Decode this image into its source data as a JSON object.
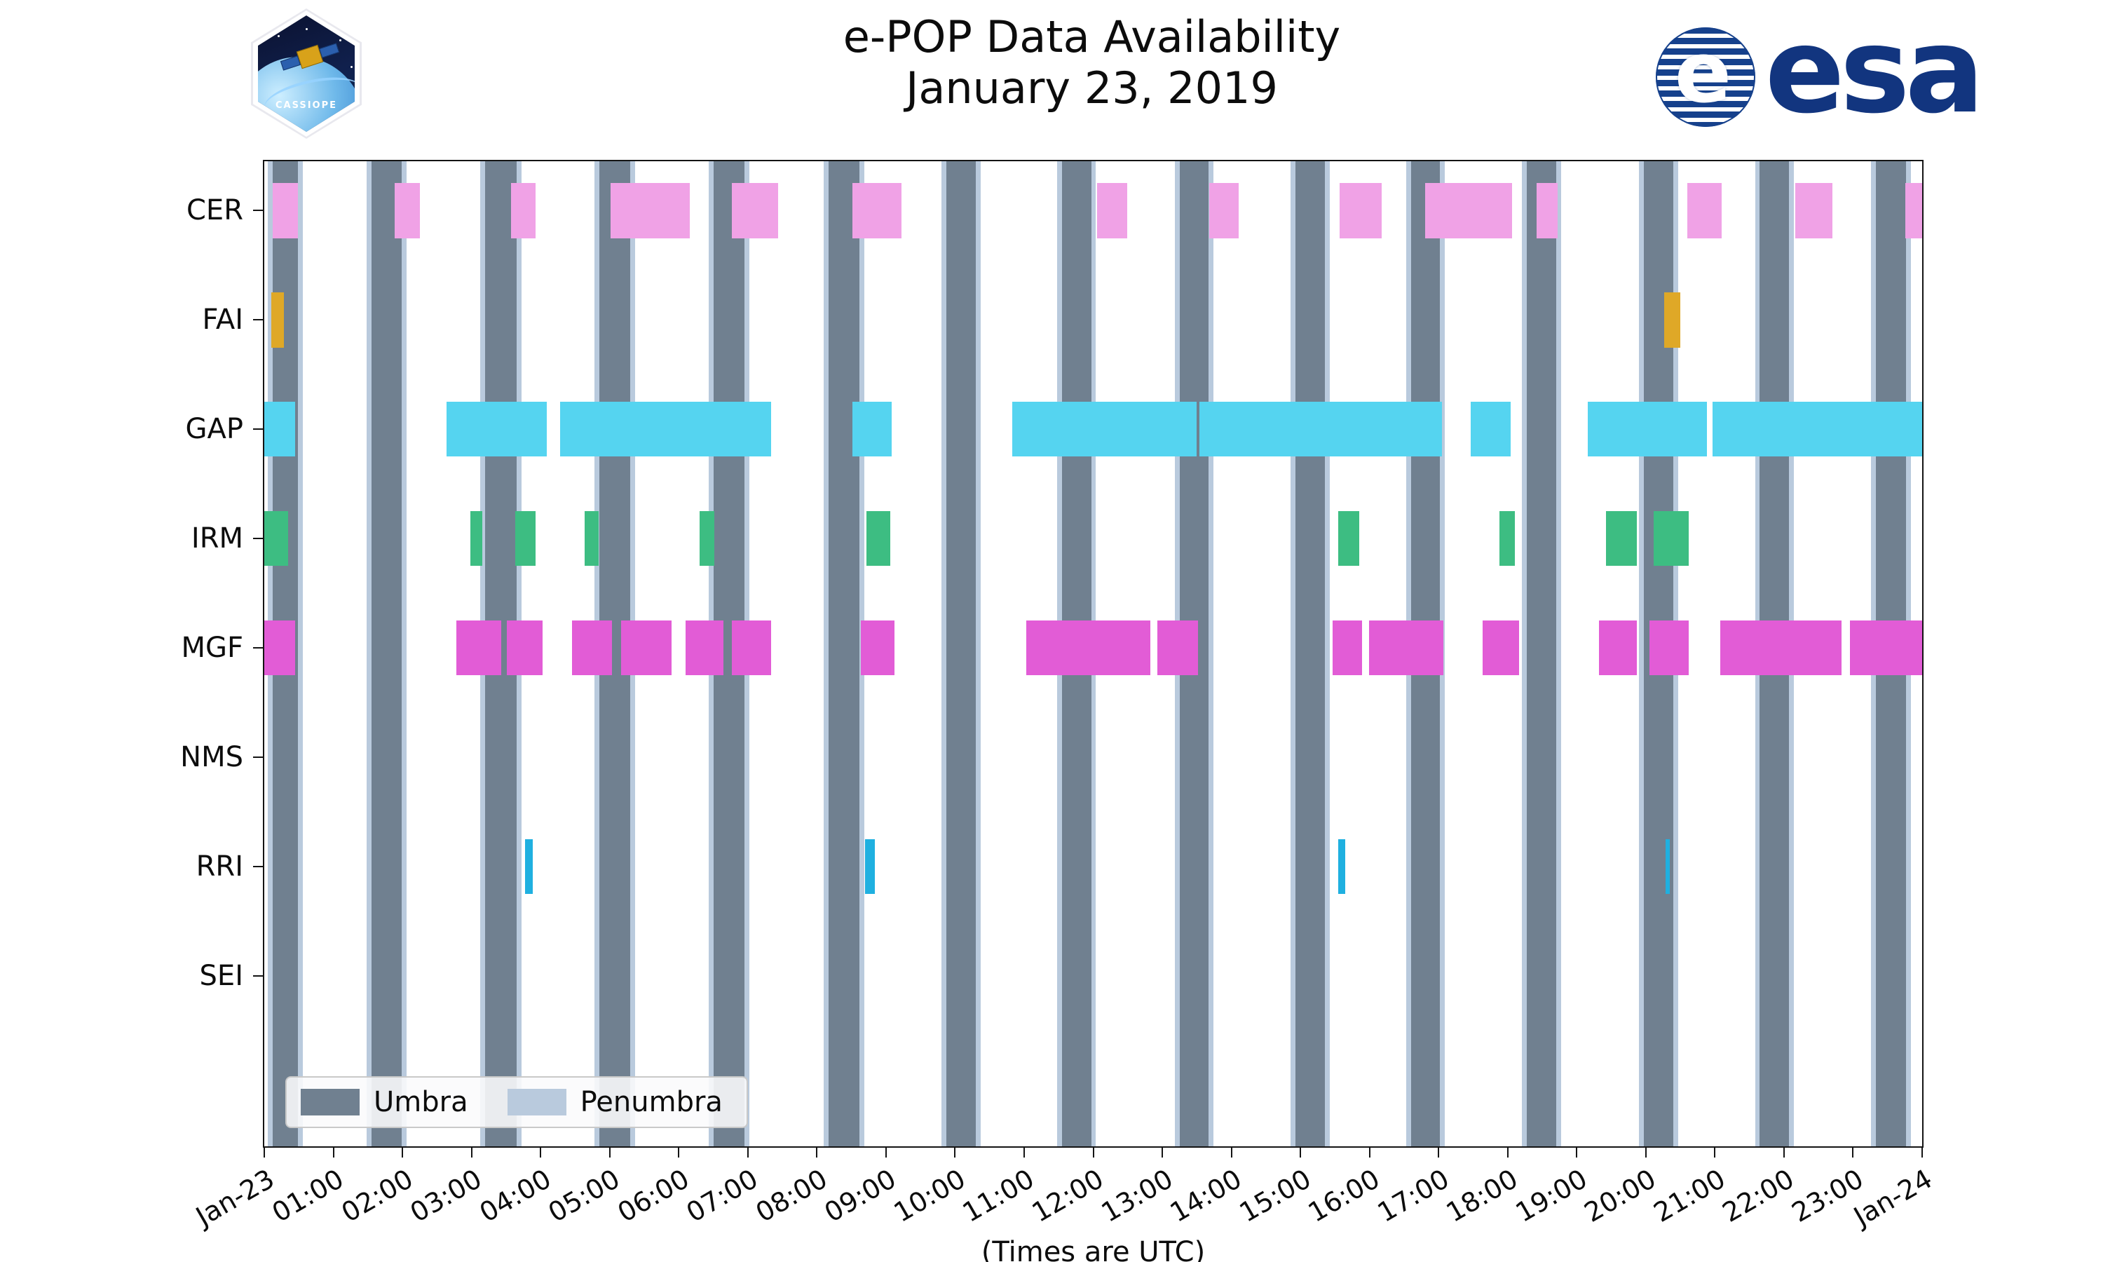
{
  "title": {
    "line1": "e-POP Data Availability",
    "line2": "January 23, 2019"
  },
  "xaxis": {
    "label": "(Times are UTC)",
    "tick_labels": [
      "Jan-23",
      "01:00",
      "02:00",
      "03:00",
      "04:00",
      "05:00",
      "06:00",
      "07:00",
      "08:00",
      "09:00",
      "10:00",
      "11:00",
      "12:00",
      "13:00",
      "14:00",
      "15:00",
      "16:00",
      "17:00",
      "18:00",
      "19:00",
      "20:00",
      "21:00",
      "22:00",
      "23:00",
      "Jan-24"
    ]
  },
  "yaxis": {
    "rows": [
      "CER",
      "FAI",
      "GAP",
      "IRM",
      "MGF",
      "NMS",
      "RRI",
      "SEI"
    ]
  },
  "legend": {
    "items": [
      {
        "label": "Umbra",
        "color": "#708090"
      },
      {
        "label": "Penumbra",
        "color": "#b9cadd"
      }
    ]
  },
  "logos": {
    "cassiope_label": "CASSIOPE",
    "esa_label": "esa",
    "esa_globe_letter": "e"
  },
  "chart_data": {
    "type": "bar",
    "subtype": "gantt-availability-timeline",
    "title": "e-POP Data Availability — January 23, 2019",
    "xlabel": "(Times are UTC)",
    "x_unit": "hours UTC on 2019-01-23",
    "time_range_hours": [
      0,
      24
    ],
    "grid": false,
    "legend_position": "lower-left inside axes",
    "rows": [
      "CER",
      "FAI",
      "GAP",
      "IRM",
      "MGF",
      "NMS",
      "RRI",
      "SEI"
    ],
    "umbra_color": "#708090",
    "penumbra_color": "#b9cadd",
    "penumbra_pad_hours": 0.07,
    "umbra_intervals": [
      [
        0.12,
        0.49
      ],
      [
        1.55,
        1.99
      ],
      [
        3.2,
        3.65
      ],
      [
        4.85,
        5.3
      ],
      [
        6.5,
        6.95
      ],
      [
        8.17,
        8.62
      ],
      [
        9.87,
        10.3
      ],
      [
        11.55,
        11.97
      ],
      [
        13.25,
        13.67
      ],
      [
        14.93,
        15.35
      ],
      [
        16.6,
        17.02
      ],
      [
        18.28,
        18.7
      ],
      [
        19.97,
        20.4
      ],
      [
        21.65,
        22.07
      ],
      [
        23.33,
        23.77
      ]
    ],
    "row_first_center_frac": 0.05,
    "row_spacing_frac": 0.111,
    "bar_height_frac": 0.056,
    "series": [
      {
        "name": "CER",
        "color": "#f0a2e6",
        "intervals": [
          [
            0.12,
            0.49
          ],
          [
            1.89,
            2.25
          ],
          [
            3.57,
            3.93
          ],
          [
            5.01,
            6.16
          ],
          [
            6.77,
            7.44
          ],
          [
            8.51,
            9.22
          ],
          [
            12.06,
            12.49
          ],
          [
            13.68,
            14.11
          ],
          [
            15.57,
            16.18
          ],
          [
            16.81,
            18.06
          ],
          [
            18.42,
            18.72
          ],
          [
            20.6,
            21.1
          ],
          [
            22.16,
            22.7
          ],
          [
            23.76,
            24.0
          ]
        ]
      },
      {
        "name": "FAI",
        "color": "#dfa827",
        "intervals": [
          [
            0.1,
            0.28
          ],
          [
            20.27,
            20.5
          ]
        ]
      },
      {
        "name": "GAP",
        "color": "#55d4f0",
        "intervals": [
          [
            0.0,
            0.45
          ],
          [
            2.64,
            4.09
          ],
          [
            4.28,
            7.34
          ],
          [
            8.51,
            9.08
          ],
          [
            10.83,
            13.5
          ],
          [
            13.54,
            17.05
          ],
          [
            17.46,
            18.04
          ],
          [
            19.16,
            20.88
          ],
          [
            20.97,
            24.0
          ]
        ]
      },
      {
        "name": "IRM",
        "color": "#3dbd82",
        "intervals": [
          [
            0.0,
            0.34
          ],
          [
            2.98,
            3.16
          ],
          [
            3.63,
            3.93
          ],
          [
            4.64,
            4.84
          ],
          [
            6.3,
            6.51
          ],
          [
            8.72,
            9.06
          ],
          [
            15.55,
            15.85
          ],
          [
            17.88,
            18.1
          ],
          [
            19.42,
            19.87
          ],
          [
            20.11,
            20.62
          ]
        ]
      },
      {
        "name": "MGF",
        "color": "#e25cd6",
        "intervals": [
          [
            0.0,
            0.45
          ],
          [
            2.78,
            3.43
          ],
          [
            3.51,
            4.03
          ],
          [
            4.46,
            5.03
          ],
          [
            5.17,
            5.9
          ],
          [
            6.1,
            6.65
          ],
          [
            6.77,
            7.34
          ],
          [
            8.64,
            9.12
          ],
          [
            11.03,
            12.83
          ],
          [
            12.93,
            13.52
          ],
          [
            15.47,
            15.89
          ],
          [
            15.99,
            17.07
          ],
          [
            17.64,
            18.16
          ],
          [
            19.32,
            19.87
          ],
          [
            20.05,
            20.62
          ],
          [
            21.08,
            22.83
          ],
          [
            22.95,
            24.0
          ]
        ]
      },
      {
        "name": "NMS",
        "color": "#999999",
        "intervals": []
      },
      {
        "name": "RRI",
        "color": "#1fb0e0",
        "intervals": [
          [
            3.77,
            3.89
          ],
          [
            8.7,
            8.84
          ],
          [
            15.55,
            15.65
          ],
          [
            20.29,
            20.35
          ]
        ]
      },
      {
        "name": "SEI",
        "color": "#999999",
        "intervals": []
      }
    ]
  }
}
